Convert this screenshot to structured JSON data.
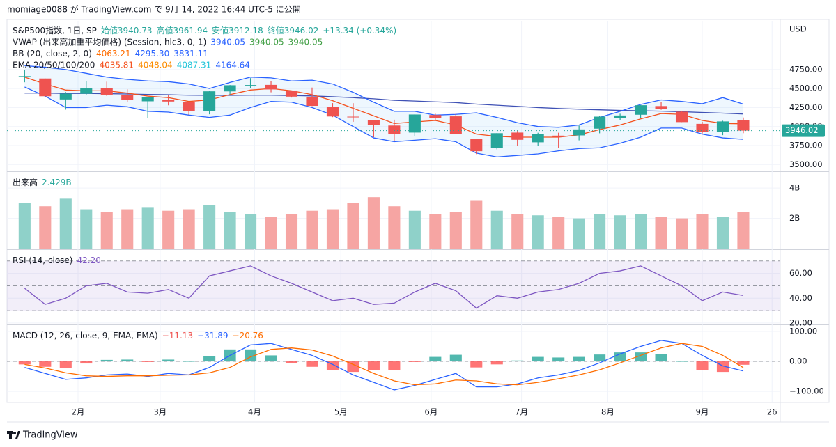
{
  "header": "momiage0088 が TradingView.com で 9月 14, 2022 16:44 UTC-5 に公開",
  "footer": "TradingView",
  "currency": "USD",
  "chart_data": [
    {
      "type": "candlestick",
      "legend": [
        {
          "label": "S&P500指数, 1日, SP",
          "values": [
            "始値3940.73",
            "高値3961.94",
            "安値3912.18",
            "終値3946.02",
            "+13.34 (+0.34%)"
          ],
          "colors": [
            "#26a69a",
            "#26a69a",
            "#26a69a",
            "#26a69a",
            "#26a69a"
          ]
        },
        {
          "label": "VWAP (出来高加重平均価格) (Session, hlc3, 0, 1)",
          "values": [
            "3940.05",
            "3940.05",
            "3940.05"
          ],
          "colors": [
            "#2962ff",
            "#43a047",
            "#43a047"
          ]
        },
        {
          "label": "BB (20, close, 2, 0)",
          "values": [
            "4063.21",
            "4295.30",
            "3831.11"
          ],
          "colors": [
            "#ff6d00",
            "#2962ff",
            "#2962ff"
          ]
        },
        {
          "label": "EMA 20/50/100/200",
          "values": [
            "4035.81",
            "4048.04",
            "4087.31",
            "4164.64"
          ],
          "colors": [
            "#f4511e",
            "#fb8c00",
            "#26c6da",
            "#2962ff"
          ]
        }
      ],
      "x": [
        1.6,
        2.6,
        3.6,
        4.6,
        5.6,
        6.6,
        7.6,
        8.6,
        9.6,
        10.6,
        11.6,
        12.6,
        13.6,
        14.6,
        15.6,
        16.6,
        17.6,
        18.6,
        19.6,
        20.6,
        21.6,
        22.6,
        23.6,
        24.6,
        25.6,
        26.6,
        27.6,
        28.6,
        29.6,
        30.6,
        31.6,
        32.6,
        33.6,
        34.6,
        35.6,
        36.6
      ],
      "xlim": [
        0.74,
        38.4
      ],
      "xticks": [
        {
          "value": 4.2,
          "label": "2月"
        },
        {
          "value": 8.2,
          "label": "3月"
        },
        {
          "value": 12.8,
          "label": "4月"
        },
        {
          "value": 17.0,
          "label": "5月"
        },
        {
          "value": 21.4,
          "label": "6月"
        },
        {
          "value": 25.8,
          "label": "7月"
        },
        {
          "value": 30.0,
          "label": "8月"
        },
        {
          "value": 34.6,
          "label": "9月"
        },
        {
          "value": 38.0,
          "label": "26"
        }
      ],
      "open": [
        4662,
        4632,
        4356,
        4431,
        4505,
        4412,
        4332,
        4354,
        4327,
        4203,
        4462,
        4541,
        4548,
        4474,
        4385,
        4256,
        4130,
        4081,
        4013,
        3920,
        4151,
        4134,
        3838,
        3715,
        3920,
        3792,
        3880,
        3883,
        3972,
        4113,
        4155,
        4269,
        4195,
        4035,
        3930,
        4083
      ],
      "high": [
        4749,
        4632,
        4453,
        4595,
        4590,
        4490,
        4385,
        4416,
        4327,
        4465,
        4546,
        4637,
        4593,
        4471,
        4513,
        4308,
        4307,
        4081,
        4090,
        4159,
        4168,
        4168,
        3838,
        3913,
        3946,
        3918,
        3918,
        4013,
        4140,
        4168,
        4280,
        4326,
        4203,
        4062,
        4076,
        4119
      ],
      "low": [
        4582,
        4395,
        4222,
        4414,
        4401,
        4327,
        4115,
        4279,
        4157,
        4161,
        4424,
        4506,
        4450,
        4381,
        4268,
        4124,
        4062,
        3859,
        3811,
        3876,
        4074,
        3900,
        3637,
        3700,
        3741,
        3743,
        3722,
        3818,
        3911,
        4080,
        4109,
        4220,
        4057,
        3907,
        3886,
        3912
      ],
      "close": [
        4663,
        4398,
        4432,
        4501,
        4419,
        4349,
        4385,
        4329,
        4204,
        4463,
        4543,
        4546,
        4488,
        4393,
        4272,
        4132,
        4124,
        4024,
        3901,
        4158,
        4109,
        3901,
        3675,
        3912,
        3825,
        3899,
        3863,
        3962,
        4130,
        4145,
        4280,
        4228,
        4058,
        3924,
        4067,
        3946.02
      ],
      "bb_upper": [
        4800,
        4780,
        4750,
        4700,
        4650,
        4620,
        4600,
        4590,
        4560,
        4500,
        4580,
        4650,
        4640,
        4600,
        4610,
        4560,
        4450,
        4320,
        4200,
        4200,
        4150,
        4160,
        4180,
        4120,
        4050,
        4000,
        3990,
        4020,
        4120,
        4200,
        4290,
        4350,
        4330,
        4300,
        4380,
        4295.3
      ],
      "bb_lower": [
        4520,
        4400,
        4250,
        4250,
        4280,
        4260,
        4200,
        4190,
        4150,
        4120,
        4150,
        4250,
        4330,
        4320,
        4250,
        4150,
        4000,
        3850,
        3800,
        3820,
        3840,
        3800,
        3650,
        3600,
        3620,
        3640,
        3680,
        3710,
        3720,
        3780,
        3860,
        3980,
        3980,
        3900,
        3850,
        3831.11
      ],
      "ema20": [
        4650,
        4560,
        4480,
        4470,
        4470,
        4440,
        4400,
        4380,
        4330,
        4350,
        4420,
        4480,
        4500,
        4470,
        4420,
        4340,
        4240,
        4140,
        4040,
        4060,
        4080,
        4020,
        3900,
        3870,
        3860,
        3860,
        3860,
        3890,
        3960,
        4020,
        4100,
        4170,
        4160,
        4080,
        4040,
        4035.81
      ],
      "ema200": [
        4440,
        4440,
        4435,
        4435,
        4432,
        4428,
        4422,
        4418,
        4412,
        4410,
        4410,
        4412,
        4412,
        4408,
        4402,
        4392,
        4380,
        4365,
        4345,
        4335,
        4325,
        4315,
        4295,
        4280,
        4265,
        4250,
        4238,
        4228,
        4220,
        4212,
        4208,
        4202,
        4195,
        4185,
        4176,
        4164.64
      ],
      "up_color": "#26a69a",
      "down_color": "#ef5350",
      "bb_color": "#2962ff",
      "ema20_color": "#f4511e",
      "ema200_color": "#3f51b5",
      "ylim": [
        3420,
        5390
      ],
      "yticks": [
        {
          "value": 3500,
          "label": "3500.00"
        },
        {
          "value": 3750,
          "label": "3750.00"
        },
        {
          "value": 4000,
          "label": "4000.00"
        },
        {
          "value": 4250,
          "label": "4250.00"
        },
        {
          "value": 4500,
          "label": "4500.00"
        },
        {
          "value": 4750,
          "label": "4750.00"
        }
      ]
    },
    {
      "type": "bar",
      "legend": [
        {
          "label": "出来高",
          "values": [
            "2.429B"
          ],
          "colors": [
            "#26a69a"
          ]
        }
      ],
      "values": [
        3.0,
        2.8,
        3.3,
        2.6,
        2.4,
        2.6,
        2.7,
        2.5,
        2.6,
        2.9,
        2.4,
        2.3,
        2.1,
        2.3,
        2.5,
        2.6,
        3.0,
        3.4,
        2.8,
        2.5,
        2.3,
        2.4,
        3.2,
        2.5,
        2.3,
        2.2,
        2.1,
        2.0,
        2.3,
        2.2,
        2.3,
        2.1,
        2.0,
        2.3,
        2.1,
        2.429
      ],
      "up_color": "#8fd1c9",
      "down_color": "#f6a5a3",
      "ylim": [
        0,
        5.02
      ],
      "yticks": [
        {
          "value": 2,
          "label": "2B"
        },
        {
          "value": 4,
          "label": "4B"
        }
      ]
    },
    {
      "type": "line",
      "legend": [
        {
          "label": "RSI (14, close)",
          "values": [
            "42.20"
          ],
          "colors": [
            "#7e57c2"
          ]
        }
      ],
      "values": [
        48,
        35,
        40,
        50,
        52,
        45,
        44,
        47,
        40,
        58,
        62,
        66,
        58,
        52,
        45,
        38,
        40,
        35,
        36,
        45,
        52,
        46,
        32,
        42,
        40,
        45,
        47,
        52,
        60,
        62,
        66,
        58,
        50,
        38,
        45,
        42.2
      ],
      "color": "#7e57c2",
      "band": [
        30,
        70
      ],
      "midline": 50,
      "ylim": [
        19.4,
        78.3
      ],
      "yticks": [
        {
          "value": 20,
          "label": "20.00"
        },
        {
          "value": 40,
          "label": "40.00"
        },
        {
          "value": 60,
          "label": "60.00"
        }
      ]
    },
    {
      "type": "combo",
      "legend": [
        {
          "label": "MACD (12, 26, close, 9, EMA, EMA)",
          "values": [
            "−11.13",
            "−31.89",
            "−20.76"
          ],
          "colors": [
            "#ef5350",
            "#2962ff",
            "#ff6d00"
          ]
        }
      ],
      "histogram": [
        -10,
        -18,
        -22,
        -7,
        5,
        6,
        -2,
        6,
        0,
        18,
        40,
        40,
        20,
        -5,
        -18,
        -28,
        -35,
        -30,
        -30,
        -2,
        15,
        22,
        -20,
        -10,
        3,
        15,
        13,
        15,
        23,
        30,
        30,
        25,
        0,
        -30,
        -35,
        -11.13
      ],
      "macd": [
        -20,
        -40,
        -60,
        -55,
        -45,
        -42,
        -50,
        -40,
        -45,
        -20,
        20,
        55,
        60,
        40,
        20,
        -10,
        -45,
        -70,
        -95,
        -80,
        -60,
        -40,
        -85,
        -85,
        -75,
        -55,
        -45,
        -30,
        -5,
        25,
        50,
        70,
        60,
        20,
        -15,
        -31.89
      ],
      "signal": [
        -10,
        -22,
        -38,
        -48,
        -50,
        -48,
        -48,
        -46,
        -45,
        -38,
        -20,
        15,
        40,
        45,
        38,
        18,
        -10,
        -40,
        -65,
        -78,
        -75,
        -62,
        -65,
        -75,
        -78,
        -70,
        -58,
        -45,
        -28,
        -5,
        20,
        45,
        60,
        50,
        20,
        -20.76
      ],
      "up_color": "#26a69a",
      "down_color": "#ff5252",
      "macd_color": "#2962ff",
      "signal_color": "#ff6d00",
      "ylim": [
        -137,
        118.6
      ],
      "yticks": [
        {
          "value": -100,
          "label": "−100.00"
        },
        {
          "value": 0,
          "label": "0.00"
        },
        {
          "value": 100,
          "label": "100.00"
        }
      ]
    }
  ]
}
